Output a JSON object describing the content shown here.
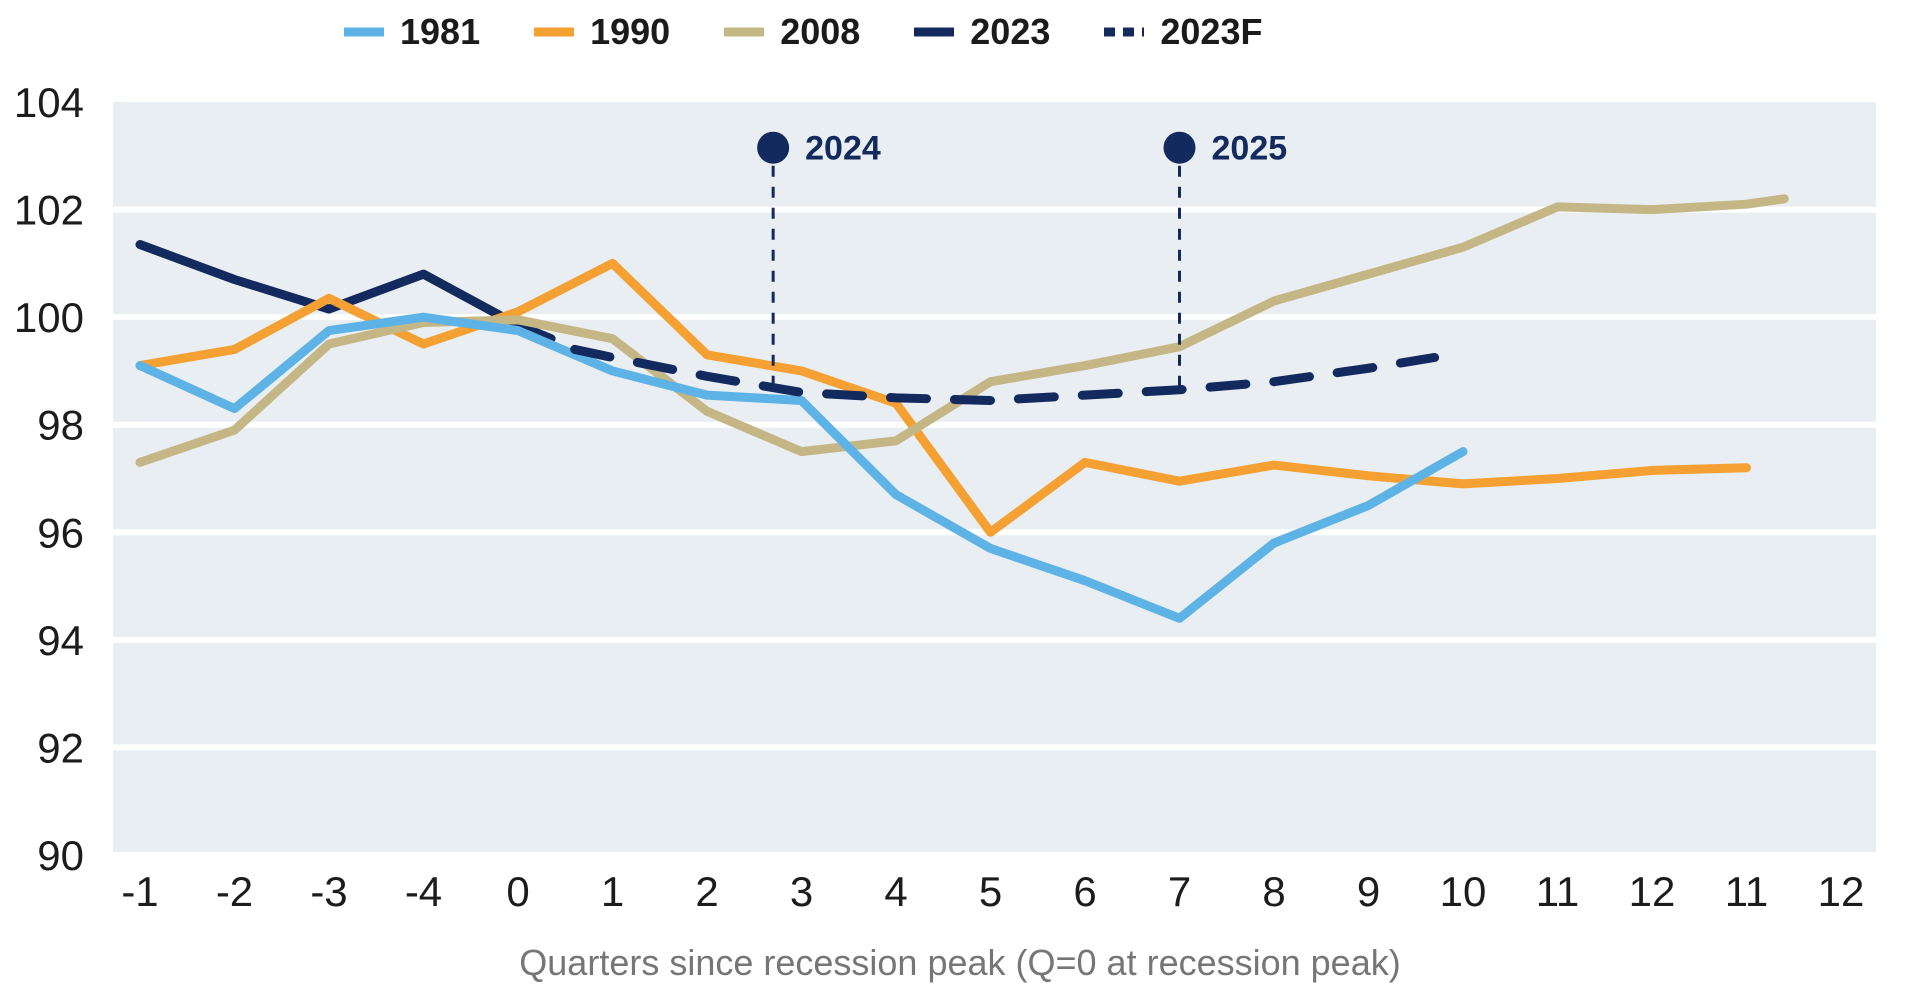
{
  "legend": {
    "items": [
      {
        "label": "1981",
        "color": "#5EB3E6",
        "dashed": false
      },
      {
        "label": "1990",
        "color": "#F5A033",
        "dashed": false
      },
      {
        "label": "2008",
        "color": "#C5B785",
        "dashed": false
      },
      {
        "label": "2023",
        "color": "#132A5E",
        "dashed": false
      },
      {
        "label": "2023F",
        "color": "#132A5E",
        "dashed": true
      }
    ]
  },
  "chart_data": {
    "type": "line",
    "title": "",
    "xlabel": "Quarters since recession peak (Q=0 at recession peak)",
    "ylabel": "",
    "ylim": [
      90,
      104
    ],
    "y_ticks": [
      104,
      102,
      100,
      98,
      96,
      94,
      92,
      90
    ],
    "x_tick_labels": [
      "-1",
      "-2",
      "-3",
      "-4",
      "0",
      "1",
      "2",
      "3",
      "4",
      "5",
      "6",
      "7",
      "8",
      "9",
      "10",
      "11",
      "12",
      "11",
      "12"
    ],
    "grid": "horizontal white gridlines every 2 units",
    "plot_bg": "#E9EEF2",
    "legend_position": "top",
    "series": [
      {
        "name": "2023",
        "color": "#132A5E",
        "dashed": false,
        "x": [
          0,
          1,
          2,
          3,
          4,
          4.35
        ],
        "values": [
          101.35,
          100.7,
          100.15,
          100.8,
          99.85,
          99.6
        ]
      },
      {
        "name": "1990",
        "color": "#F5A033",
        "dashed": false,
        "x": [
          0,
          1,
          2,
          3,
          4,
          5,
          6,
          7,
          8,
          9,
          10,
          11,
          12,
          13,
          14,
          15,
          16,
          17
        ],
        "values": [
          99.1,
          99.4,
          100.35,
          99.5,
          100.1,
          101.0,
          99.3,
          99.0,
          98.4,
          96.0,
          97.3,
          96.95,
          97.25,
          97.05,
          96.9,
          97.0,
          97.15,
          97.2
        ]
      },
      {
        "name": "2008",
        "color": "#C5B785",
        "dashed": false,
        "x": [
          0,
          1,
          2,
          3,
          4,
          5,
          6,
          7,
          8,
          9,
          10,
          11,
          12,
          13,
          14,
          15,
          16,
          17,
          17.4
        ],
        "values": [
          97.3,
          97.9,
          99.5,
          99.9,
          99.95,
          99.6,
          98.25,
          97.5,
          97.7,
          98.8,
          99.1,
          99.45,
          100.3,
          100.8,
          101.3,
          102.05,
          102.0,
          102.1,
          102.2
        ]
      },
      {
        "name": "1981",
        "color": "#5EB3E6",
        "dashed": false,
        "x": [
          0,
          1,
          2,
          3,
          4,
          5,
          6,
          7,
          8,
          9,
          10,
          11,
          12,
          13,
          14
        ],
        "values": [
          99.1,
          98.3,
          99.75,
          100.0,
          99.75,
          99.0,
          98.55,
          98.45,
          96.7,
          95.7,
          95.1,
          94.4,
          95.8,
          96.5,
          97.5
        ]
      },
      {
        "name": "2023F",
        "color": "#132A5E",
        "dashed": true,
        "x": [
          4.6,
          5,
          6,
          7,
          8,
          9,
          10,
          11,
          12,
          13,
          13.7
        ],
        "values": [
          99.4,
          99.25,
          98.9,
          98.6,
          98.5,
          98.45,
          98.55,
          98.65,
          98.8,
          99.05,
          99.25
        ]
      }
    ],
    "annotations": [
      {
        "label": "2024",
        "x_index": 6.7,
        "dot_value": 103.15,
        "line_end_value": 98.68,
        "color": "#132A5E"
      },
      {
        "label": "2025",
        "x_index": 11.0,
        "dot_value": 103.15,
        "line_end_value": 98.65,
        "color": "#132A5E"
      }
    ]
  }
}
